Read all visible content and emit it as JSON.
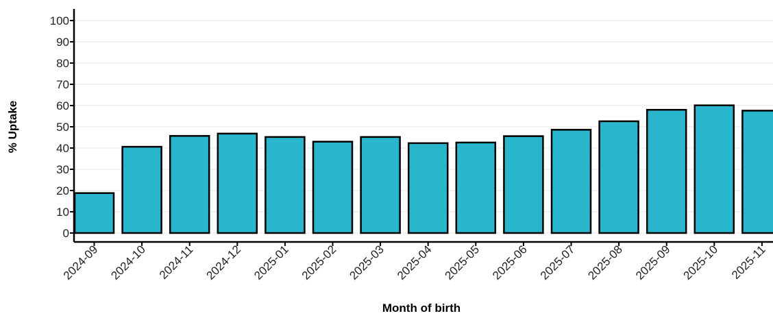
{
  "chart_data": {
    "type": "bar",
    "title": "",
    "xlabel": "Month of birth",
    "ylabel": "% Uptake",
    "ylim": [
      0,
      100
    ],
    "yticks": [
      0,
      10,
      20,
      30,
      40,
      50,
      60,
      70,
      80,
      90,
      100
    ],
    "grid": "horizontal",
    "bar_color": "#29B6CC",
    "bar_edge_color": "#000000",
    "categories": [
      "2024-09",
      "2024-10",
      "2024-11",
      "2024-12",
      "2025-01",
      "2025-02",
      "2025-03",
      "2025-04",
      "2025-05",
      "2025-06",
      "2025-07",
      "2025-08",
      "2025-09",
      "2025-10",
      "2025-11"
    ],
    "values": [
      18.8,
      40.6,
      45.7,
      46.8,
      45.2,
      43.0,
      45.2,
      42.3,
      42.6,
      45.6,
      48.6,
      52.6,
      58.0,
      60.1,
      57.6
    ]
  }
}
